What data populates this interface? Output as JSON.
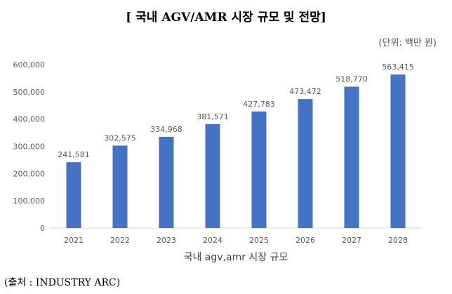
{
  "title": "[ 국내 AGV/AMR 시장 규모 및 전망]",
  "unit_note": "(단위: 백만 원)",
  "source": "(출처 : INDUSTRY ARC)",
  "colors": {
    "bar": "#4472c4",
    "axis_text": "#595959",
    "gridline": "#d9d9d9"
  },
  "chart_data": {
    "type": "bar",
    "categories": [
      "2021",
      "2022",
      "2023",
      "2024",
      "2025",
      "2026",
      "2027",
      "2028"
    ],
    "values": [
      241581,
      302575,
      334968,
      381571,
      427783,
      473472,
      518770,
      563415
    ],
    "value_labels": [
      "241,581",
      "302,575",
      "334,968",
      "381,571",
      "427,783",
      "473,472",
      "518,770",
      "563,415"
    ],
    "xlabel": "국내 agv,amr 시장 규모",
    "ylabel": "",
    "ylim": [
      0,
      600000
    ],
    "yticks": [
      0,
      100000,
      200000,
      300000,
      400000,
      500000,
      600000
    ],
    "ytick_labels": [
      "0",
      "100,000",
      "200,000",
      "300,000",
      "400,000",
      "500,000",
      "600,000"
    ],
    "grid": false,
    "legend": "none"
  }
}
